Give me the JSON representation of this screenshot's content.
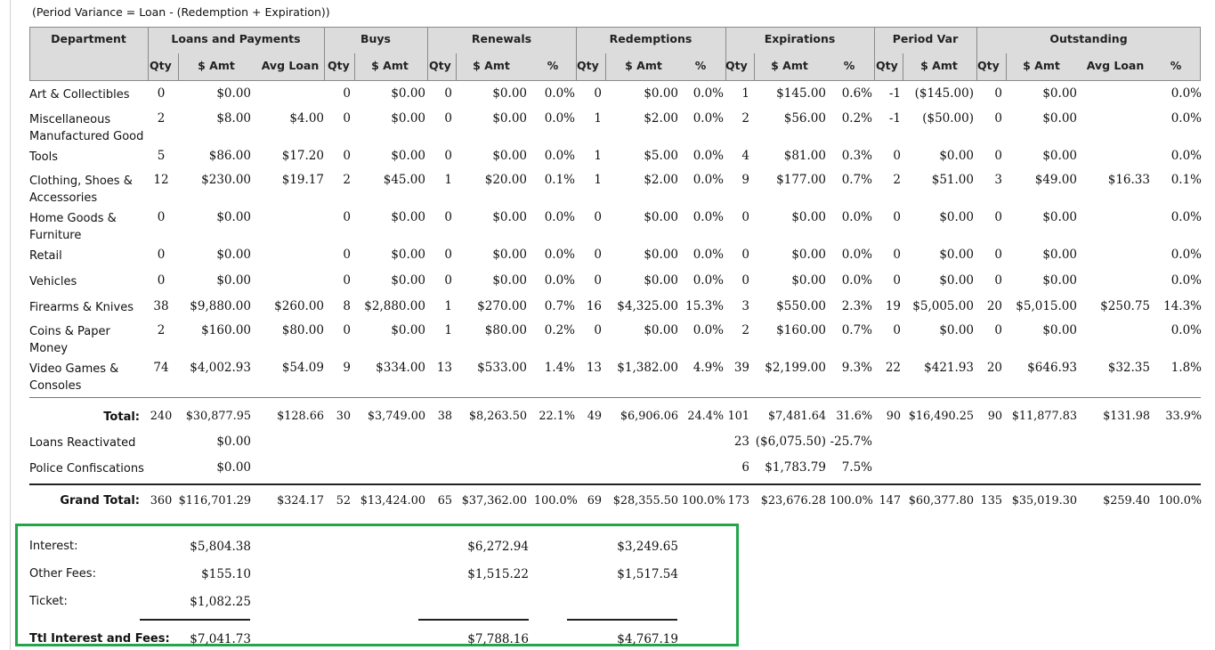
{
  "note": "(Period Variance = Loan - (Redemption + Expiration))",
  "header": {
    "department": "Department",
    "groups": [
      "Loans and Payments",
      "Buys",
      "Renewals",
      "Redemptions",
      "Expirations",
      "Period Var",
      "Outstanding"
    ],
    "sub": [
      "Qty",
      "$ Amt",
      "Avg Loan",
      "Qty",
      "$ Amt",
      "Qty",
      "$ Amt",
      "%",
      "Qty",
      "$ Amt",
      "%",
      "Qty",
      "$ Amt",
      "%",
      "Qty",
      "$ Amt",
      "Qty",
      "$ Amt",
      "Avg Loan",
      "%"
    ]
  },
  "rows": [
    {
      "dept": [
        "Art & Collectibles"
      ],
      "v": [
        "0",
        "$0.00",
        "",
        "0",
        "$0.00",
        "0",
        "$0.00",
        "0.0%",
        "0",
        "$0.00",
        "0.0%",
        "1",
        "$145.00",
        "0.6%",
        "-1",
        "($145.00)",
        "0",
        "$0.00",
        "",
        "0.0%"
      ]
    },
    {
      "dept": [
        "Miscellaneous",
        "Manufactured Good"
      ],
      "v": [
        "2",
        "$8.00",
        "$4.00",
        "0",
        "$0.00",
        "0",
        "$0.00",
        "0.0%",
        "1",
        "$2.00",
        "0.0%",
        "2",
        "$56.00",
        "0.2%",
        "-1",
        "($50.00)",
        "0",
        "$0.00",
        "",
        "0.0%"
      ]
    },
    {
      "dept": [
        "Tools"
      ],
      "v": [
        "5",
        "$86.00",
        "$17.20",
        "0",
        "$0.00",
        "0",
        "$0.00",
        "0.0%",
        "1",
        "$5.00",
        "0.0%",
        "4",
        "$81.00",
        "0.3%",
        "0",
        "$0.00",
        "0",
        "$0.00",
        "",
        "0.0%"
      ]
    },
    {
      "dept": [
        "Clothing, Shoes &",
        "Accessories"
      ],
      "v": [
        "12",
        "$230.00",
        "$19.17",
        "2",
        "$45.00",
        "1",
        "$20.00",
        "0.1%",
        "1",
        "$2.00",
        "0.0%",
        "9",
        "$177.00",
        "0.7%",
        "2",
        "$51.00",
        "3",
        "$49.00",
        "$16.33",
        "0.1%"
      ]
    },
    {
      "dept": [
        "Home Goods &",
        "Furniture"
      ],
      "v": [
        "0",
        "$0.00",
        "",
        "0",
        "$0.00",
        "0",
        "$0.00",
        "0.0%",
        "0",
        "$0.00",
        "0.0%",
        "0",
        "$0.00",
        "0.0%",
        "0",
        "$0.00",
        "0",
        "$0.00",
        "",
        "0.0%"
      ]
    },
    {
      "dept": [
        "Retail"
      ],
      "v": [
        "0",
        "$0.00",
        "",
        "0",
        "$0.00",
        "0",
        "$0.00",
        "0.0%",
        "0",
        "$0.00",
        "0.0%",
        "0",
        "$0.00",
        "0.0%",
        "0",
        "$0.00",
        "0",
        "$0.00",
        "",
        "0.0%"
      ]
    },
    {
      "dept": [
        "Vehicles"
      ],
      "v": [
        "0",
        "$0.00",
        "",
        "0",
        "$0.00",
        "0",
        "$0.00",
        "0.0%",
        "0",
        "$0.00",
        "0.0%",
        "0",
        "$0.00",
        "0.0%",
        "0",
        "$0.00",
        "0",
        "$0.00",
        "",
        "0.0%"
      ]
    },
    {
      "dept": [
        "Firearms & Knives"
      ],
      "v": [
        "38",
        "$9,880.00",
        "$260.00",
        "8",
        "$2,880.00",
        "1",
        "$270.00",
        "0.7%",
        "16",
        "$4,325.00",
        "15.3%",
        "3",
        "$550.00",
        "2.3%",
        "19",
        "$5,005.00",
        "20",
        "$5,015.00",
        "$250.75",
        "14.3%"
      ]
    },
    {
      "dept": [
        "Coins & Paper",
        "Money"
      ],
      "v": [
        "2",
        "$160.00",
        "$80.00",
        "0",
        "$0.00",
        "1",
        "$80.00",
        "0.2%",
        "0",
        "$0.00",
        "0.0%",
        "2",
        "$160.00",
        "0.7%",
        "0",
        "$0.00",
        "0",
        "$0.00",
        "",
        "0.0%"
      ]
    },
    {
      "dept": [
        "Video Games &",
        "Consoles"
      ],
      "v": [
        "74",
        "$4,002.93",
        "$54.09",
        "9",
        "$334.00",
        "13",
        "$533.00",
        "1.4%",
        "13",
        "$1,382.00",
        "4.9%",
        "39",
        "$2,199.00",
        "9.3%",
        "22",
        "$421.93",
        "20",
        "$646.93",
        "$32.35",
        "1.8%"
      ]
    }
  ],
  "total": {
    "label": "Total:",
    "v": [
      "240",
      "$30,877.95",
      "$128.66",
      "30",
      "$3,749.00",
      "38",
      "$8,263.50",
      "22.1%",
      "49",
      "$6,906.06",
      "24.4%",
      "101",
      "$7,481.64",
      "31.6%",
      "90",
      "$16,490.25",
      "90",
      "$11,877.83",
      "$131.98",
      "33.9%"
    ]
  },
  "loans_reactivated": {
    "label": "Loans Reactivated",
    "amt": "$0.00",
    "exp_qty": "23",
    "exp_amt": "($6,075.50)",
    "exp_pct": "-25.7%"
  },
  "police": {
    "label": "Police Confiscations",
    "amt": "$0.00",
    "exp_qty": "6",
    "exp_amt": "$1,783.79",
    "exp_pct": "7.5%"
  },
  "grand_total": {
    "label": "Grand Total:",
    "v": [
      "360",
      "$116,701.29",
      "$324.17",
      "52",
      "$13,424.00",
      "65",
      "$37,362.00",
      "100.0%",
      "69",
      "$28,355.50",
      "100.0%",
      "173",
      "$23,676.28",
      "100.0%",
      "147",
      "$60,377.80",
      "135",
      "$35,019.30",
      "$259.40",
      "100.0%"
    ]
  },
  "fees": {
    "interest": {
      "label": "Interest:",
      "loans": "$5,804.38",
      "renewals": "$6,272.94",
      "redemptions": "$3,249.65"
    },
    "other": {
      "label": "Other Fees:",
      "loans": "$155.10",
      "renewals": "$1,515.22",
      "redemptions": "$1,517.54"
    },
    "ticket": {
      "label": "Ticket:",
      "loans": "$1,082.25"
    },
    "total": {
      "label": "Ttl Interest and Fees:",
      "loans": "$7,041.73",
      "renewals": "$7,788.16",
      "redemptions": "$4,767.19"
    }
  }
}
